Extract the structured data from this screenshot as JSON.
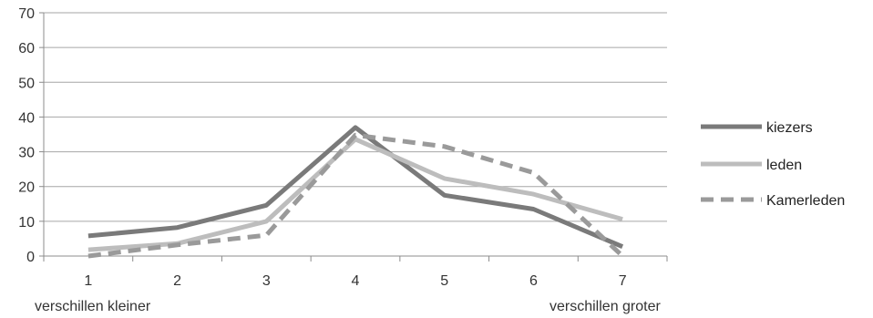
{
  "chart_data": {
    "type": "line",
    "title": "",
    "xlabel": "",
    "ylabel": "",
    "x": [
      1,
      2,
      3,
      4,
      5,
      6,
      7
    ],
    "x_ticks": [
      "1",
      "2",
      "3",
      "4",
      "5",
      "6",
      "7"
    ],
    "x_annotations": {
      "start": "verschillen kleiner",
      "end": "verschillen groter"
    },
    "ylim": [
      0,
      70
    ],
    "y_ticks": [
      0,
      10,
      20,
      30,
      40,
      50,
      60,
      70
    ],
    "grid": "horizontal",
    "legend_position": "right",
    "series": [
      {
        "name": "kiezers",
        "style": "solid",
        "color": "#7a7a7a",
        "values": [
          5.8,
          8.2,
          14.6,
          37.0,
          17.5,
          13.5,
          2.7
        ]
      },
      {
        "name": "leden",
        "style": "solid",
        "color": "#bdbdbd",
        "values": [
          1.8,
          3.6,
          10.0,
          33.6,
          22.3,
          17.8,
          10.6
        ]
      },
      {
        "name": "Kamerleden",
        "style": "dashed",
        "color": "#9a9a9a",
        "values": [
          0,
          3.2,
          6.0,
          34.8,
          31.5,
          24.0,
          0
        ]
      }
    ]
  }
}
